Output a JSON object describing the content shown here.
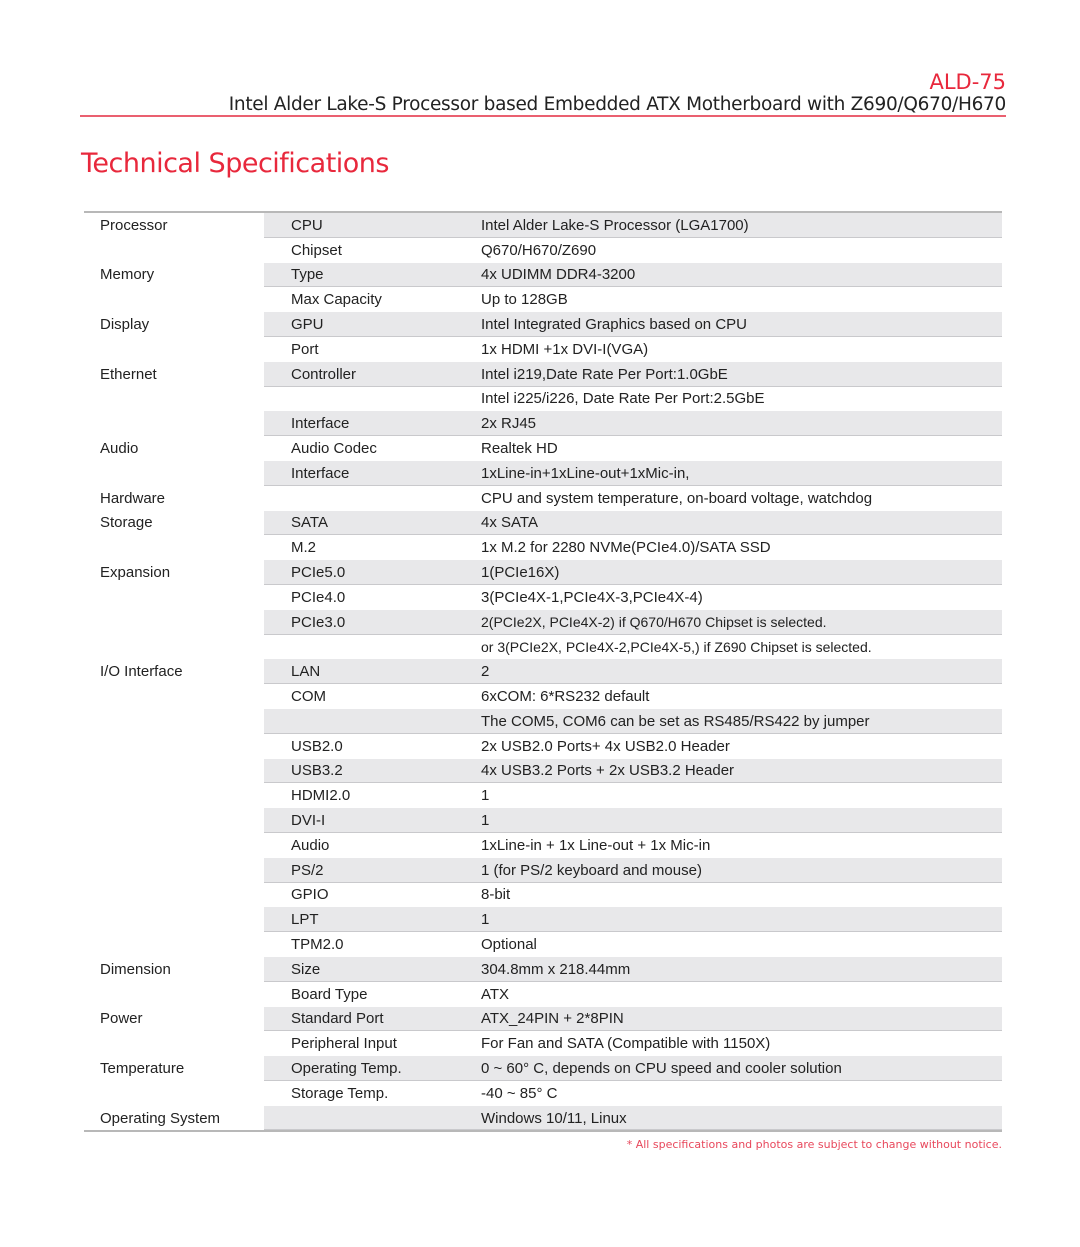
{
  "header": {
    "model": "ALD-75",
    "subtitle": "Intel Alder Lake-S Processor based Embedded ATX Motherboard with  Z690/Q670/H670",
    "accent_color": "#e8283c"
  },
  "page_title": "Technical Specifications",
  "specs": [
    {
      "group": "Processor",
      "item": "CPU",
      "value": "Intel Alder Lake-S Processor (LGA1700)"
    },
    {
      "group": "",
      "item": "Chipset",
      "value": "Q670/H670/Z690"
    },
    {
      "group": "Memory",
      "item": "Type",
      "value": "4x UDIMM DDR4-3200"
    },
    {
      "group": "",
      "item": "Max Capacity",
      "value": "Up to 128GB"
    },
    {
      "group": "Display",
      "item": "GPU",
      "value": "Intel Integrated Graphics based on CPU"
    },
    {
      "group": "",
      "item": "Port",
      "value": "1x HDMI +1x DVI-I(VGA)"
    },
    {
      "group": "Ethernet",
      "item": "Controller",
      "value": "Intel i219,Date Rate Per Port:1.0GbE"
    },
    {
      "group": "",
      "item": "",
      "value": "Intel i225/i226, Date Rate Per Port:2.5GbE"
    },
    {
      "group": "",
      "item": "Interface",
      "value": "2x RJ45"
    },
    {
      "group": "Audio",
      "item": "Audio Codec",
      "value": "Realtek HD"
    },
    {
      "group": "",
      "item": "Interface",
      "value": "1xLine-in+1xLine-out+1xMic-in,"
    },
    {
      "group": "Hardware",
      "item": "",
      "value": "CPU and system temperature, on-board voltage, watchdog"
    },
    {
      "group": "Storage",
      "item": "SATA",
      "value": "4x SATA"
    },
    {
      "group": "",
      "item": "M.2",
      "value": "1x M.2 for 2280 NVMe(PCIe4.0)/SATA SSD"
    },
    {
      "group": "Expansion",
      "item": "PCIe5.0",
      "value": "1(PCIe16X)"
    },
    {
      "group": "",
      "item": "PCIe4.0",
      "value": "3(PCIe4X-1,PCIe4X-3,PCIe4X-4)"
    },
    {
      "group": "",
      "item": "PCIe3.0",
      "value": "2(PCIe2X, PCIe4X-2) if Q670/H670 Chipset is selected."
    },
    {
      "group": "",
      "item": "",
      "value": "or 3(PCIe2X, PCIe4X-2,PCIe4X-5,) if Z690 Chipset is selected."
    },
    {
      "group": "I/O Interface",
      "item": "LAN",
      "value": "2"
    },
    {
      "group": "",
      "item": "COM",
      "value": "6xCOM: 6*RS232 default"
    },
    {
      "group": "",
      "item": "",
      "value": "The COM5, COM6 can be set as RS485/RS422 by jumper"
    },
    {
      "group": "",
      "item": "USB2.0",
      "value": "2x USB2.0 Ports+ 4x USB2.0 Header"
    },
    {
      "group": "",
      "item": "USB3.2",
      "value": "4x USB3.2 Ports + 2x USB3.2 Header"
    },
    {
      "group": "",
      "item": "HDMI2.0",
      "value": "1"
    },
    {
      "group": "",
      "item": "DVI-I",
      "value": "1"
    },
    {
      "group": "",
      "item": "Audio",
      "value": "1xLine-in + 1x Line-out + 1x Mic-in"
    },
    {
      "group": "",
      "item": "PS/2",
      "value": "1 (for PS/2 keyboard and mouse)"
    },
    {
      "group": "",
      "item": "GPIO",
      "value": "8-bit"
    },
    {
      "group": "",
      "item": "LPT",
      "value": "1"
    },
    {
      "group": "",
      "item": "TPM2.0",
      "value": "Optional"
    },
    {
      "group": "Dimension",
      "item": "Size",
      "value": "304.8mm x 218.44mm"
    },
    {
      "group": "",
      "item": "Board Type",
      "value": "ATX"
    },
    {
      "group": "Power",
      "item": "Standard Port",
      "value": "ATX_24PIN + 2*8PIN"
    },
    {
      "group": "",
      "item": "Peripheral Input",
      "value": "For Fan and SATA (Compatible with 1150X)"
    },
    {
      "group": "Temperature",
      "item": "Operating Temp.",
      "value": "0 ~ 60° C, depends on CPU speed and cooler solution"
    },
    {
      "group": "",
      "item": "Storage Temp.",
      "value": "-40 ~ 85° C"
    },
    {
      "group": "Operating System",
      "item": "",
      "value": "Windows 10/11, Linux"
    }
  ],
  "footnote": "* All specifications and photos are subject to change without notice."
}
